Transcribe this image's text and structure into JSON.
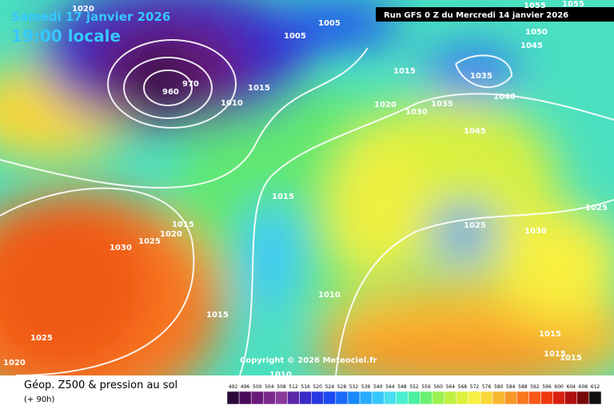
{
  "header": {
    "date": "Samedi 17 janvier 2026",
    "time": "19:00 locale",
    "run": "Run GFS 0 Z du Mercredi 14 janvier 2026",
    "copyright": "Copyright © 2026 Meteociel.fr"
  },
  "footer": {
    "title": "Géop. Z500 & pression au sol",
    "lead": "(+ 90h)"
  },
  "isobar_labels": [
    "1020",
    "1005",
    "1005",
    "1055",
    "1055",
    "1050",
    "1045",
    "1035",
    "1040",
    "1015",
    "1020",
    "1030",
    "1035",
    "1045",
    "970",
    "960",
    "1010",
    "1015",
    "1015",
    "1015",
    "1025",
    "1020",
    "1030",
    "1025",
    "1030",
    "1025",
    "1010",
    "1015",
    "1025",
    "1020",
    "1015",
    "1015",
    "1010",
    "1015"
  ],
  "colorbar": {
    "labels": [
      492,
      496,
      500,
      504,
      508,
      512,
      516,
      520,
      524,
      528,
      532,
      536,
      540,
      544,
      548,
      552,
      556,
      560,
      564,
      568,
      572,
      576,
      580,
      584,
      588,
      592,
      596,
      600,
      604,
      608,
      612
    ],
    "colors": [
      "#2a0a3a",
      "#4a0a5a",
      "#6a1a7a",
      "#7a2a8a",
      "#8a3a9a",
      "#5a28a8",
      "#3a2ac8",
      "#2a3ae0",
      "#1a4af0",
      "#1a6af8",
      "#1a8afa",
      "#2aaafc",
      "#3ac8fc",
      "#4ae0f0",
      "#4af0d0",
      "#4af0a0",
      "#6af070",
      "#9af050",
      "#c0f040",
      "#e0f040",
      "#f8f040",
      "#f8d838",
      "#f8b830",
      "#f89828",
      "#f87820",
      "#f85818",
      "#f03810",
      "#d82010",
      "#b01010",
      "#780808",
      "#101010"
    ]
  }
}
